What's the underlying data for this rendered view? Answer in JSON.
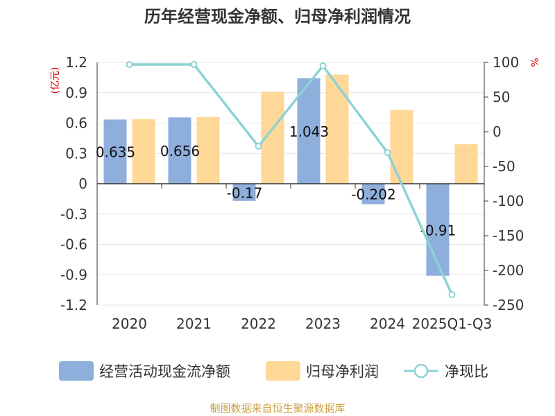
{
  "chart_data": {
    "type": "bar",
    "title": "历年经营现金净额、归母净利润情况",
    "categories": [
      "2020",
      "2021",
      "2022",
      "2023",
      "2024",
      "2025Q1-Q3"
    ],
    "left_axis": {
      "unit_label": "(亿元)",
      "range": [
        -1.2,
        1.2
      ],
      "ticks": [
        "1.2",
        "0.9",
        "0.6",
        "0.3",
        "0",
        "-0.3",
        "-0.6",
        "-0.9",
        "-1.2"
      ]
    },
    "right_axis": {
      "unit_label": "%",
      "range": [
        -250,
        100
      ],
      "ticks": [
        "100",
        "50",
        "0",
        "-50",
        "-100",
        "-150",
        "-200",
        "-250"
      ]
    },
    "series": [
      {
        "name": "经营活动现金流净额",
        "type": "bar",
        "axis": "left",
        "color": "#8eaedb",
        "values": [
          0.635,
          0.656,
          -0.17,
          1.043,
          -0.202,
          -0.91
        ],
        "labels": [
          "0.635",
          "0.656",
          "-0.17",
          "1.043",
          "-0.202",
          "-0.91"
        ]
      },
      {
        "name": "归母净利润",
        "type": "bar",
        "axis": "left",
        "color": "#ffd797",
        "values": [
          0.64,
          0.66,
          0.91,
          1.08,
          0.73,
          0.39
        ]
      },
      {
        "name": "净现比",
        "type": "line",
        "axis": "right",
        "color": "#8cd2d6",
        "values": [
          97,
          97,
          -21,
          95,
          -30,
          -235
        ]
      }
    ],
    "source": "制图数据来自恒生聚源数据库"
  }
}
